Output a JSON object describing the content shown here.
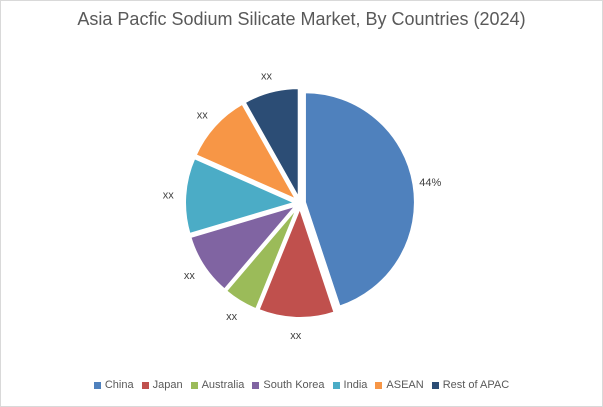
{
  "chart_data": {
    "type": "pie",
    "title": "Asia Pacfic Sodium Silicate Market, By Countries (2024)",
    "categories": [
      "China",
      "Japan",
      "Australia",
      "South Korea",
      "India",
      "ASEAN",
      "Rest of APAC"
    ],
    "values": [
      44,
      11,
      5,
      9,
      11,
      10,
      8
    ],
    "data_labels": [
      "44%",
      "xx",
      "xx",
      "xx",
      "xx",
      "xx",
      "xx"
    ],
    "colors": [
      "#4f81bd",
      "#c0504d",
      "#9bbb59",
      "#8064a2",
      "#4bacc6",
      "#f79646",
      "#2c4d75"
    ],
    "legend_position": "bottom",
    "start_angle_deg": 0,
    "direction": "clockwise",
    "exploded": true
  }
}
